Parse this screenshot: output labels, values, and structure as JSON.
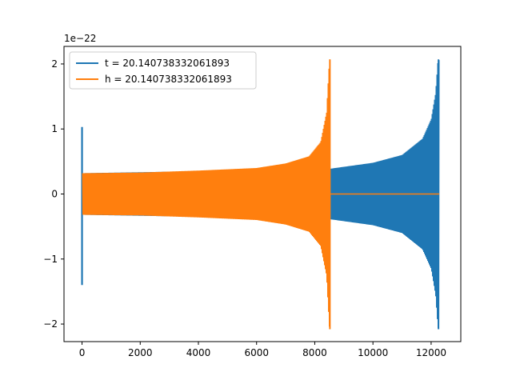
{
  "chart_data": {
    "type": "line",
    "xlim": [
      -620,
      13020
    ],
    "ylim": [
      -2.27,
      2.27
    ],
    "y_multiplier_label": "1e−22",
    "x_ticks": [
      0,
      2000,
      4000,
      6000,
      8000,
      10000,
      12000
    ],
    "x_tick_labels": [
      "0",
      "2000",
      "4000",
      "6000",
      "8000",
      "10000",
      "12000"
    ],
    "y_ticks": [
      -2,
      -1,
      0,
      1,
      2
    ],
    "y_tick_labels": [
      "−2",
      "−1",
      "0",
      "1",
      "2"
    ],
    "legend_position": "upper-left",
    "grid": false,
    "series": [
      {
        "name": "t = 20.140738332061893",
        "color": "#1f77b4",
        "kind": "chirp",
        "initial_spike": {
          "x": 0,
          "max": 1.03,
          "min": -1.4
        },
        "x_start": 0,
        "x_merger": 12280,
        "envelope": [
          {
            "x": 0,
            "amp": 0.32
          },
          {
            "x": 4000,
            "amp": 0.35
          },
          {
            "x": 8000,
            "amp": 0.35
          },
          {
            "x": 8550,
            "amp": 0.39
          },
          {
            "x": 10000,
            "amp": 0.48
          },
          {
            "x": 11000,
            "amp": 0.6
          },
          {
            "x": 11700,
            "amp": 0.85
          },
          {
            "x": 12000,
            "amp": 1.15
          },
          {
            "x": 12150,
            "amp": 1.55
          },
          {
            "x": 12230,
            "amp": 2.06
          }
        ],
        "hidden_before_x": 8550
      },
      {
        "name": "h = 20.140738332061893",
        "color": "#ff7f0e",
        "kind": "chirp",
        "x_start": 0,
        "x_merger": 8520,
        "x_end": 12280,
        "envelope": [
          {
            "x": 0,
            "amp": 0.32
          },
          {
            "x": 2000,
            "amp": 0.33
          },
          {
            "x": 4000,
            "amp": 0.36
          },
          {
            "x": 6000,
            "amp": 0.4
          },
          {
            "x": 7000,
            "amp": 0.47
          },
          {
            "x": 7800,
            "amp": 0.58
          },
          {
            "x": 8200,
            "amp": 0.8
          },
          {
            "x": 8400,
            "amp": 1.25
          },
          {
            "x": 8500,
            "amp": 2.07
          }
        ],
        "tail_value": 0
      }
    ]
  }
}
